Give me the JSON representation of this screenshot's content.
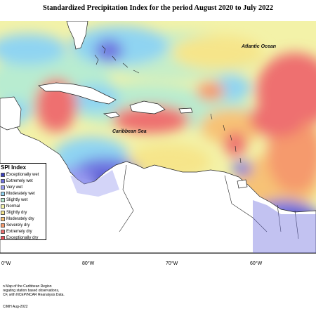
{
  "title": "Standardized Precipitation Index for the period August 2020 to July 2022",
  "map_labels": {
    "atlantic": "Atlantic Ocean",
    "caribbean": "Caribbean Sea"
  },
  "legend": {
    "title": "SPI Index",
    "items": [
      {
        "label": "Exceptionally wet",
        "color": "#3a3fbf"
      },
      {
        "label": "Extremely wet",
        "color": "#6f72e0"
      },
      {
        "label": "Very wet",
        "color": "#9a9cf0"
      },
      {
        "label": "Moderately wet",
        "color": "#8fd4f2"
      },
      {
        "label": "Slightly wet",
        "color": "#b8ecd0"
      },
      {
        "label": "Normal",
        "color": "#f2f2a8"
      },
      {
        "label": "Slightly dry",
        "color": "#f6e58a"
      },
      {
        "label": "Moderately dry",
        "color": "#f7c276"
      },
      {
        "label": "Severely dry",
        "color": "#f59a6d"
      },
      {
        "label": "Extremely dry",
        "color": "#ee6f6f"
      },
      {
        "label": "Exceptionally dry",
        "color": "#e8505a"
      }
    ]
  },
  "longitudes": [
    "0°W",
    "80°W",
    "70°W",
    "60°W"
  ],
  "credits": {
    "line1": "n Map of the Caribbean Region",
    "line2": "regating station based observations,",
    "line3": "CF, with NCEP/NCAR Reanalysis Data."
  },
  "copyright": "CIMH Aug-2022"
}
